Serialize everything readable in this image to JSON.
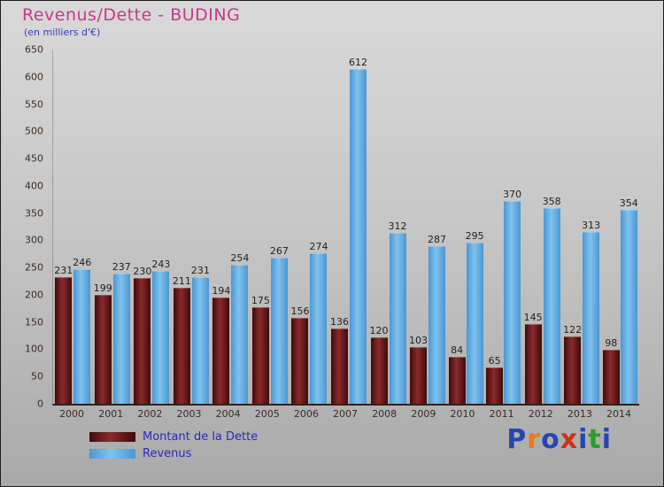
{
  "header": {
    "title": "Revenus/Dette - BUDING",
    "subtitle": "(en milliers d'€)",
    "title_color": "#c9368f",
    "subtitle_color": "#3a3ab8"
  },
  "legend": {
    "items": [
      {
        "label": "Montant de la Dette"
      },
      {
        "label": "Revenus"
      }
    ],
    "text_color": "#2a2ab8"
  },
  "logo": {
    "text": "Proxiti",
    "letters": [
      {
        "ch": "P",
        "color": "#2747b0"
      },
      {
        "ch": "r",
        "color": "#f07818"
      },
      {
        "ch": "o",
        "color": "#2747b0"
      },
      {
        "ch": "x",
        "color": "#d03018"
      },
      {
        "ch": "i",
        "color": "#2747b0"
      },
      {
        "ch": "t",
        "color": "#28a028"
      },
      {
        "ch": "i",
        "color": "#2747b0"
      }
    ]
  },
  "chart_data": {
    "type": "bar",
    "title": "Revenus/Dette - BUDING",
    "subtitle": "(en milliers d'€)",
    "xlabel": "",
    "ylabel": "",
    "ylim": [
      0,
      650
    ],
    "ytick_step": 50,
    "grid": false,
    "legend_position": "bottom-left",
    "categories": [
      "2000",
      "2001",
      "2002",
      "2003",
      "2004",
      "2005",
      "2006",
      "2007",
      "2008",
      "2009",
      "2010",
      "2011",
      "2012",
      "2013",
      "2014"
    ],
    "series": [
      {
        "name": "Montant de la Dette",
        "color_mid": "#8b2a2a",
        "color_edge": "#3f0b0b",
        "values": [
          231,
          199,
          230,
          211,
          194,
          175,
          156,
          136,
          120,
          103,
          84,
          65,
          145,
          122,
          98
        ]
      },
      {
        "name": "Revenus",
        "color_mid": "#7fc2ee",
        "color_edge": "#4a97d4",
        "values": [
          246,
          237,
          243,
          231,
          254,
          267,
          274,
          612,
          312,
          287,
          295,
          370,
          358,
          313,
          354
        ]
      }
    ]
  }
}
